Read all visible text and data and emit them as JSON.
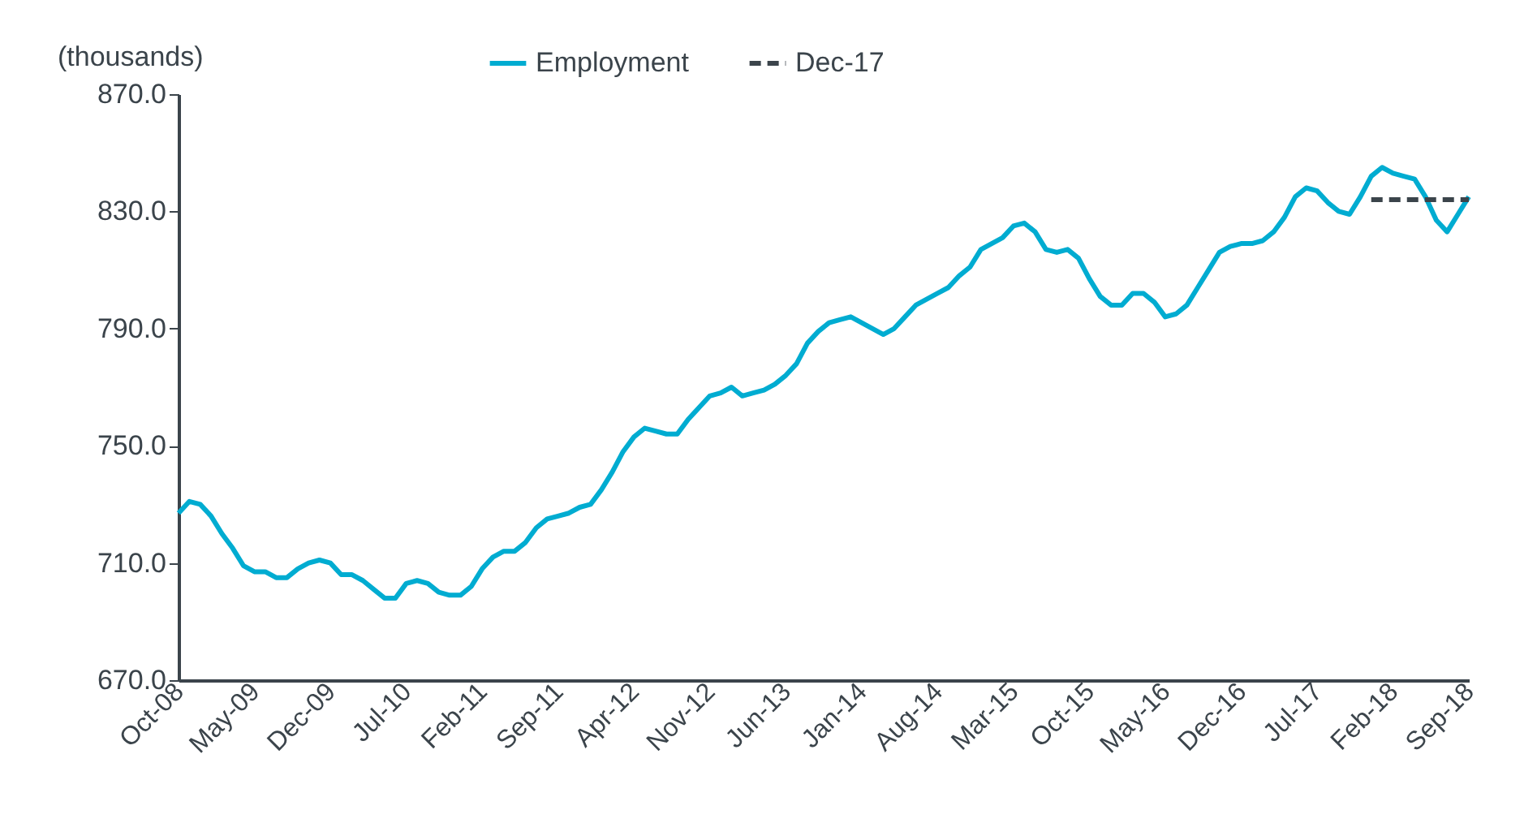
{
  "chart_data": {
    "type": "line",
    "ylabel": "(thousands)",
    "categories": [
      "Oct-08",
      null,
      null,
      null,
      null,
      null,
      null,
      "May-09",
      null,
      null,
      null,
      null,
      null,
      null,
      "Dec-09",
      null,
      null,
      null,
      null,
      null,
      null,
      "Jul-10",
      null,
      null,
      null,
      null,
      null,
      null,
      "Feb-11",
      null,
      null,
      null,
      null,
      null,
      null,
      "Sep-11",
      null,
      null,
      null,
      null,
      null,
      null,
      "Apr-12",
      null,
      null,
      null,
      null,
      null,
      null,
      "Nov-12",
      null,
      null,
      null,
      null,
      null,
      null,
      "Jun-13",
      null,
      null,
      null,
      null,
      null,
      null,
      "Jan-14",
      null,
      null,
      null,
      null,
      null,
      null,
      "Aug-14",
      null,
      null,
      null,
      null,
      null,
      null,
      "Mar-15",
      null,
      null,
      null,
      null,
      null,
      null,
      "Oct-15",
      null,
      null,
      null,
      null,
      null,
      null,
      "May-16",
      null,
      null,
      null,
      null,
      null,
      null,
      "Dec-16",
      null,
      null,
      null,
      null,
      null,
      null,
      "Jul-17",
      null,
      null,
      null,
      null,
      null,
      null,
      "Feb-18",
      null,
      null,
      null,
      null,
      null,
      null,
      "Sep-18"
    ],
    "series": [
      {
        "name": "Employment",
        "color": "#00acd1",
        "line_style": "solid",
        "values": [
          727,
          731,
          730,
          726,
          720,
          715,
          709,
          707,
          707,
          705,
          705,
          708,
          710,
          711,
          710,
          706,
          706,
          704,
          701,
          698,
          698,
          703,
          704,
          703,
          700,
          699,
          699,
          702,
          708,
          712,
          714,
          714,
          717,
          722,
          725,
          726,
          727,
          729,
          730,
          735,
          741,
          748,
          753,
          756,
          755,
          754,
          754,
          759,
          763,
          767,
          768,
          770,
          767,
          768,
          769,
          771,
          774,
          778,
          785,
          789,
          792,
          793,
          794,
          792,
          790,
          788,
          790,
          794,
          798,
          800,
          802,
          804,
          808,
          811,
          817,
          819,
          821,
          825,
          826,
          823,
          817,
          816,
          817,
          814,
          807,
          801,
          798,
          798,
          802,
          802,
          799,
          794,
          795,
          798,
          804,
          810,
          816,
          818,
          819,
          819,
          820,
          823,
          828,
          835,
          838,
          837,
          833,
          830,
          829,
          835,
          842,
          845,
          843,
          842,
          841,
          835,
          827,
          823,
          829,
          835
        ]
      },
      {
        "name": "Dec-17",
        "color": "#3b444b",
        "line_style": "dashed",
        "values": [
          null,
          null,
          null,
          null,
          null,
          null,
          null,
          null,
          null,
          null,
          null,
          null,
          null,
          null,
          null,
          null,
          null,
          null,
          null,
          null,
          null,
          null,
          null,
          null,
          null,
          null,
          null,
          null,
          null,
          null,
          null,
          null,
          null,
          null,
          null,
          null,
          null,
          null,
          null,
          null,
          null,
          null,
          null,
          null,
          null,
          null,
          null,
          null,
          null,
          null,
          null,
          null,
          null,
          null,
          null,
          null,
          null,
          null,
          null,
          null,
          null,
          null,
          null,
          null,
          null,
          null,
          null,
          null,
          null,
          null,
          null,
          null,
          null,
          null,
          null,
          null,
          null,
          null,
          null,
          null,
          null,
          null,
          null,
          null,
          null,
          null,
          null,
          null,
          null,
          null,
          null,
          null,
          null,
          null,
          null,
          null,
          null,
          null,
          null,
          null,
          null,
          null,
          null,
          null,
          null,
          null,
          null,
          null,
          null,
          null,
          834,
          834,
          834,
          834,
          834,
          834,
          834,
          834,
          834,
          834
        ]
      }
    ],
    "ylim": [
      670,
      870
    ],
    "yticks": [
      {
        "value": 670,
        "label": "670.0"
      },
      {
        "value": 710,
        "label": "710.0"
      },
      {
        "value": 750,
        "label": "750.0"
      },
      {
        "value": 790,
        "label": "790.0"
      },
      {
        "value": 830,
        "label": "830.0"
      },
      {
        "value": 870,
        "label": "870.0"
      }
    ],
    "grid": false,
    "legend": "top",
    "marker": "none"
  }
}
